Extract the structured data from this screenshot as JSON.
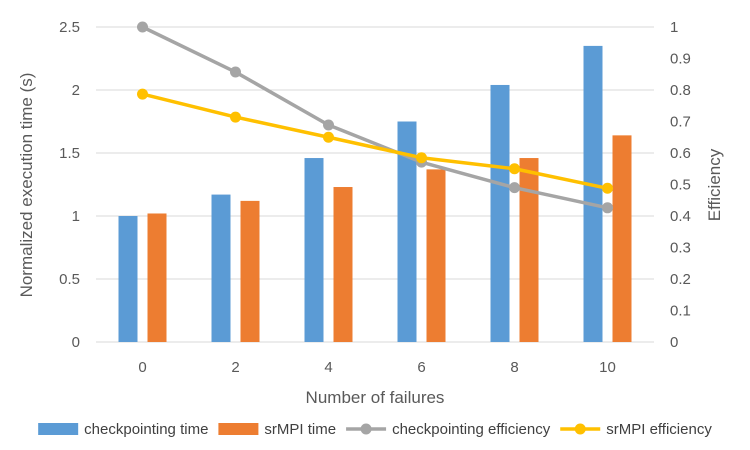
{
  "chart_data": {
    "type": "bar",
    "categories": [
      "0",
      "2",
      "4",
      "6",
      "8",
      "10"
    ],
    "series": [
      {
        "name": "checkpointing time",
        "kind": "bar",
        "axis": "left",
        "color": "#5b9bd5",
        "values": [
          1.0,
          1.17,
          1.46,
          1.75,
          2.04,
          2.35
        ]
      },
      {
        "name": "srMPI time",
        "kind": "bar",
        "axis": "left",
        "color": "#ed7d31",
        "values": [
          1.02,
          1.12,
          1.23,
          1.37,
          1.46,
          1.64
        ]
      },
      {
        "name": "checkpointing efficiency",
        "kind": "line",
        "axis": "right",
        "color": "#a5a5a5",
        "values": [
          1.0,
          0.857,
          0.689,
          0.571,
          0.49,
          0.426
        ]
      },
      {
        "name": "srMPI efficiency",
        "kind": "line",
        "axis": "right",
        "color": "#ffc000",
        "values": [
          0.787,
          0.714,
          0.65,
          0.585,
          0.55,
          0.488
        ]
      }
    ],
    "xlabel": "Number of failures",
    "ylabel": "Normalized execution time (s)",
    "y2label": "Efficiency",
    "ylim": [
      0,
      2.5
    ],
    "y2lim": [
      0,
      1
    ],
    "yticks": [
      "0",
      "0.5",
      "1",
      "1.5",
      "2",
      "2.5"
    ],
    "y2ticks": [
      "0",
      "0.1",
      "0.2",
      "0.3",
      "0.4",
      "0.5",
      "0.6",
      "0.7",
      "0.8",
      "0.9",
      "1"
    ],
    "grid": true,
    "legend_position": "bottom"
  }
}
